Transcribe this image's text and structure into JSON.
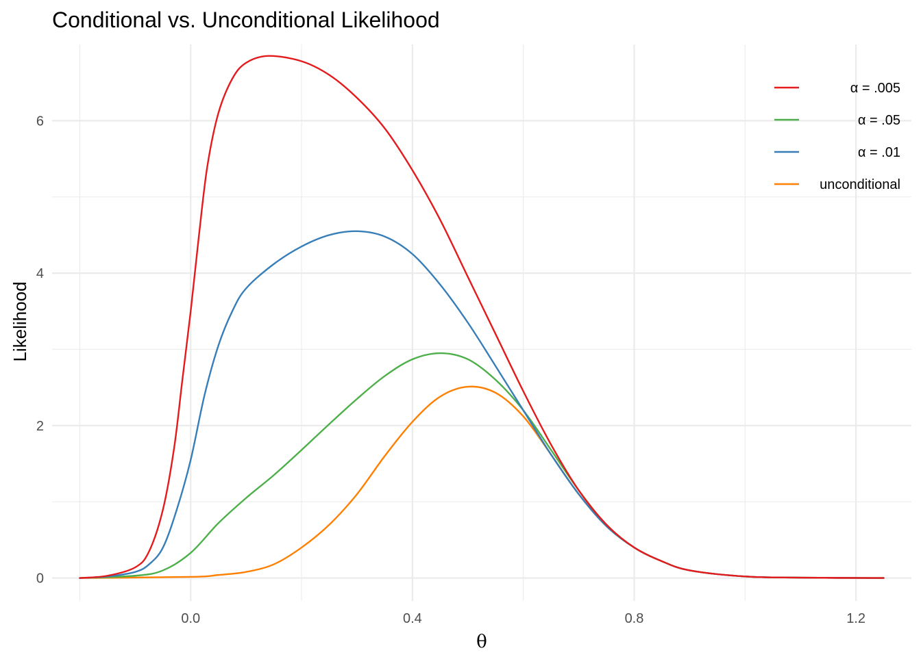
{
  "chart_data": {
    "type": "line",
    "title": "Conditional vs. Unconditional Likelihood",
    "xlabel": "θ",
    "ylabel": "Likelihood",
    "xlim": [
      -0.25,
      1.3
    ],
    "ylim": [
      -0.3,
      7.0
    ],
    "x_ticks": [
      0.0,
      0.4,
      0.8,
      1.2
    ],
    "x_tick_labels": [
      "0.0",
      "0.4",
      "0.8",
      "1.2"
    ],
    "x_minor_ticks": [
      -0.2,
      0.2,
      0.6,
      1.0
    ],
    "y_ticks": [
      0,
      2,
      4,
      6
    ],
    "y_tick_labels": [
      "0",
      "2",
      "4",
      "6"
    ],
    "y_minor_ticks": [
      1,
      3,
      5
    ],
    "grid": true,
    "legend_position": "top-right",
    "series": [
      {
        "name": "α = .005",
        "color": "#e41a1c",
        "points": [
          [
            -0.2,
            0.0
          ],
          [
            -0.15,
            0.03
          ],
          [
            -0.1,
            0.14
          ],
          [
            -0.075,
            0.35
          ],
          [
            -0.05,
            0.9
          ],
          [
            -0.03,
            1.7
          ],
          [
            -0.015,
            2.6
          ],
          [
            0.0,
            3.5
          ],
          [
            0.015,
            4.5
          ],
          [
            0.03,
            5.4
          ],
          [
            0.05,
            6.1
          ],
          [
            0.075,
            6.55
          ],
          [
            0.1,
            6.76
          ],
          [
            0.14,
            6.85
          ],
          [
            0.2,
            6.78
          ],
          [
            0.25,
            6.6
          ],
          [
            0.3,
            6.3
          ],
          [
            0.35,
            5.9
          ],
          [
            0.4,
            5.35
          ],
          [
            0.45,
            4.7
          ],
          [
            0.5,
            3.95
          ],
          [
            0.55,
            3.2
          ],
          [
            0.6,
            2.45
          ],
          [
            0.65,
            1.75
          ],
          [
            0.7,
            1.15
          ],
          [
            0.75,
            0.7
          ],
          [
            0.8,
            0.4
          ],
          [
            0.85,
            0.22
          ],
          [
            0.9,
            0.1
          ],
          [
            1.0,
            0.02
          ],
          [
            1.1,
            0.005
          ],
          [
            1.25,
            0.0
          ]
        ]
      },
      {
        "name": "α = .05",
        "color": "#4daf4a",
        "points": [
          [
            -0.2,
            0.0
          ],
          [
            -0.1,
            0.03
          ],
          [
            -0.05,
            0.1
          ],
          [
            0.0,
            0.33
          ],
          [
            0.05,
            0.72
          ],
          [
            0.1,
            1.05
          ],
          [
            0.15,
            1.35
          ],
          [
            0.2,
            1.68
          ],
          [
            0.25,
            2.02
          ],
          [
            0.3,
            2.35
          ],
          [
            0.35,
            2.65
          ],
          [
            0.4,
            2.87
          ],
          [
            0.45,
            2.95
          ],
          [
            0.5,
            2.87
          ],
          [
            0.55,
            2.6
          ],
          [
            0.6,
            2.2
          ],
          [
            0.65,
            1.68
          ],
          [
            0.7,
            1.15
          ],
          [
            0.75,
            0.7
          ],
          [
            0.8,
            0.4
          ],
          [
            0.85,
            0.22
          ],
          [
            0.9,
            0.1
          ],
          [
            1.0,
            0.02
          ],
          [
            1.1,
            0.005
          ],
          [
            1.25,
            0.0
          ]
        ]
      },
      {
        "name": "α = .01",
        "color": "#377eb8",
        "points": [
          [
            -0.2,
            0.0
          ],
          [
            -0.15,
            0.02
          ],
          [
            -0.1,
            0.08
          ],
          [
            -0.075,
            0.18
          ],
          [
            -0.05,
            0.4
          ],
          [
            -0.025,
            0.9
          ],
          [
            0.0,
            1.55
          ],
          [
            0.025,
            2.4
          ],
          [
            0.05,
            3.05
          ],
          [
            0.075,
            3.5
          ],
          [
            0.1,
            3.8
          ],
          [
            0.15,
            4.12
          ],
          [
            0.2,
            4.35
          ],
          [
            0.25,
            4.5
          ],
          [
            0.3,
            4.55
          ],
          [
            0.35,
            4.48
          ],
          [
            0.4,
            4.25
          ],
          [
            0.45,
            3.85
          ],
          [
            0.5,
            3.35
          ],
          [
            0.55,
            2.78
          ],
          [
            0.6,
            2.2
          ],
          [
            0.65,
            1.62
          ],
          [
            0.7,
            1.1
          ],
          [
            0.75,
            0.68
          ],
          [
            0.8,
            0.4
          ],
          [
            0.85,
            0.22
          ],
          [
            0.9,
            0.1
          ],
          [
            1.0,
            0.02
          ],
          [
            1.1,
            0.005
          ],
          [
            1.25,
            0.0
          ]
        ]
      },
      {
        "name": "unconditional",
        "color": "#ff7f00",
        "points": [
          [
            -0.2,
            0.0
          ],
          [
            0.0,
            0.015
          ],
          [
            0.05,
            0.04
          ],
          [
            0.1,
            0.08
          ],
          [
            0.15,
            0.18
          ],
          [
            0.2,
            0.4
          ],
          [
            0.25,
            0.7
          ],
          [
            0.3,
            1.1
          ],
          [
            0.35,
            1.6
          ],
          [
            0.4,
            2.05
          ],
          [
            0.45,
            2.38
          ],
          [
            0.5,
            2.51
          ],
          [
            0.55,
            2.43
          ],
          [
            0.6,
            2.12
          ],
          [
            0.65,
            1.62
          ],
          [
            0.7,
            1.1
          ],
          [
            0.75,
            0.68
          ],
          [
            0.8,
            0.4
          ],
          [
            0.85,
            0.22
          ],
          [
            0.9,
            0.1
          ],
          [
            1.0,
            0.02
          ],
          [
            1.1,
            0.005
          ],
          [
            1.25,
            0.0
          ]
        ]
      }
    ]
  }
}
